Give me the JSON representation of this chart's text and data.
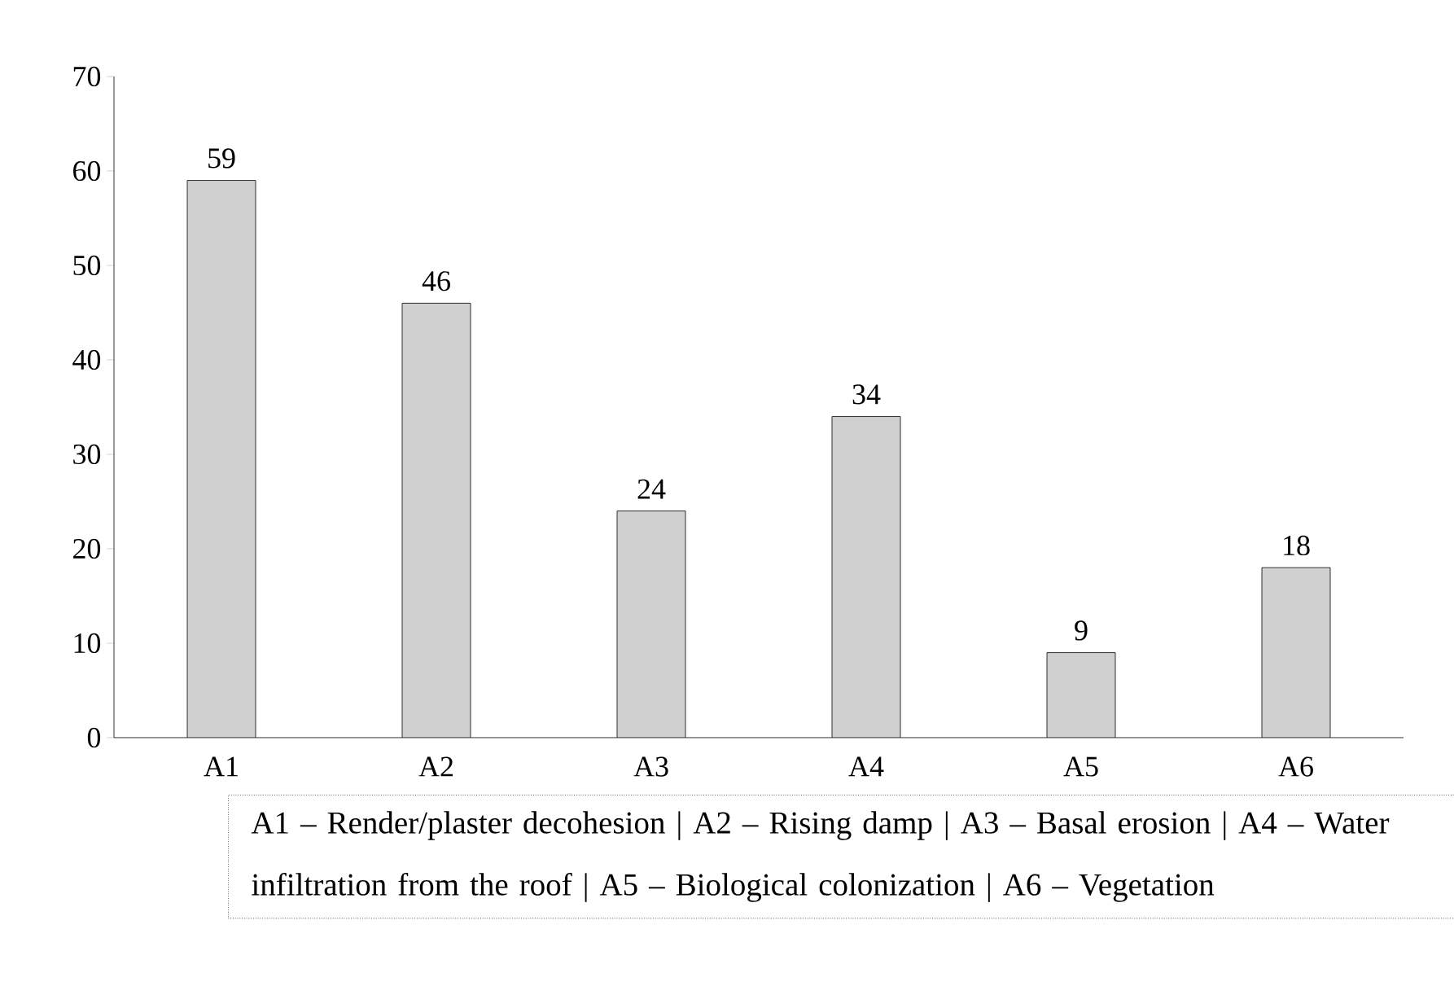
{
  "chart_data": {
    "type": "bar",
    "categories": [
      "A1",
      "A2",
      "A3",
      "A4",
      "A5",
      "A6"
    ],
    "values": [
      59,
      46,
      24,
      34,
      9,
      18
    ],
    "color": "#d0d0d0",
    "ylim": [
      0,
      70
    ],
    "yticks": [
      0,
      10,
      20,
      30,
      40,
      50,
      60,
      70
    ],
    "data_labels": true,
    "annotations": [
      "A1 – Render/plaster decohesion | A2 – Rising damp | A3 – Basal erosion | A4 – Water infiltration from the roof | A5 – Biological colonization | A6 – Vegetation"
    ]
  }
}
